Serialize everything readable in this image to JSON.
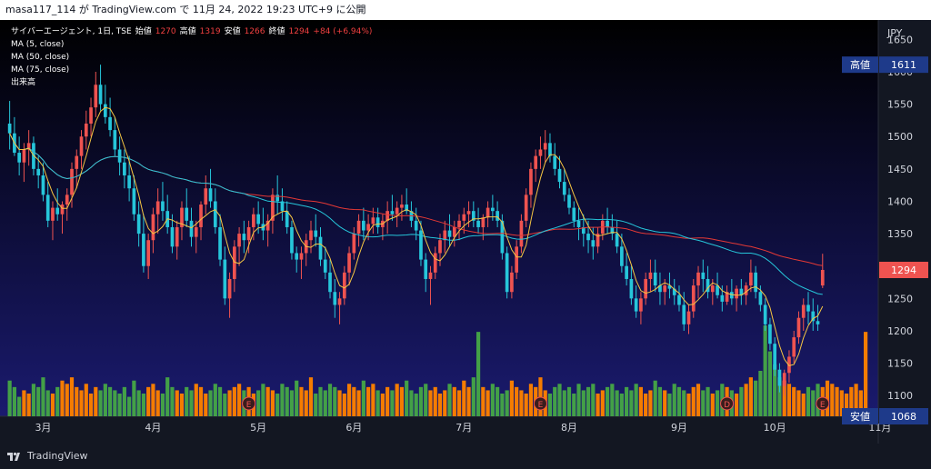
{
  "top_bar": {
    "text": "masa117_114 が TradingView.com で 11月 24, 2022 19:23 UTC+9 に公開"
  },
  "legend": {
    "symbol": "サイバーエージェント, 1日, TSE",
    "open_label": "始値",
    "open": "1270",
    "high_label": "高値",
    "high": "1319",
    "low_label": "安値",
    "low": "1266",
    "close_label": "終値",
    "close": "1294",
    "change": "+84 (+6.94%)",
    "indicators": [
      "MA (5, close)",
      "MA (50, close)",
      "MA (75, close)",
      "出来高"
    ]
  },
  "axis": {
    "currency": "JPY"
  },
  "markers": {
    "high": {
      "label": "高値",
      "value": "1611"
    },
    "last": {
      "value": "1294"
    },
    "low": {
      "label": "安値",
      "value": "1068"
    }
  },
  "event_labels": [
    "E",
    "E",
    "E",
    "D"
  ],
  "brand": "TradingView",
  "colors": {
    "up": "#ef5350",
    "down": "#26c6da",
    "ma5": "#f5c542",
    "ma50": "#26c6da",
    "ma75": "#e53935",
    "vol_up": "#f57c00",
    "vol_down": "#43a047"
  },
  "chart_data": {
    "type": "candlestick",
    "ylim": [
      1068,
      1680
    ],
    "y_ticks": [
      1100,
      1150,
      1200,
      1250,
      1300,
      1350,
      1400,
      1450,
      1500,
      1550,
      1600,
      1650
    ],
    "x_ticks": [
      "3月",
      "4月",
      "5月",
      "6月",
      "7月",
      "8月",
      "9月",
      "10月",
      "11月"
    ],
    "x_tick_index": [
      7,
      30,
      52,
      72,
      95,
      117,
      140,
      160,
      182
    ],
    "ohlc": [
      [
        1520,
        1555,
        1480,
        1505
      ],
      [
        1505,
        1530,
        1470,
        1475
      ],
      [
        1475,
        1500,
        1440,
        1460
      ],
      [
        1460,
        1490,
        1430,
        1480
      ],
      [
        1480,
        1510,
        1455,
        1490
      ],
      [
        1490,
        1500,
        1440,
        1450
      ],
      [
        1450,
        1470,
        1420,
        1440
      ],
      [
        1440,
        1460,
        1400,
        1410
      ],
      [
        1410,
        1430,
        1360,
        1370
      ],
      [
        1370,
        1400,
        1340,
        1390
      ],
      [
        1390,
        1420,
        1370,
        1380
      ],
      [
        1380,
        1400,
        1350,
        1395
      ],
      [
        1395,
        1420,
        1370,
        1410
      ],
      [
        1410,
        1460,
        1390,
        1450
      ],
      [
        1450,
        1480,
        1420,
        1470
      ],
      [
        1470,
        1510,
        1450,
        1500
      ],
      [
        1500,
        1540,
        1480,
        1520
      ],
      [
        1520,
        1560,
        1500,
        1545
      ],
      [
        1545,
        1600,
        1530,
        1580
      ],
      [
        1580,
        1611,
        1540,
        1550
      ],
      [
        1550,
        1580,
        1520,
        1530
      ],
      [
        1530,
        1560,
        1500,
        1510
      ],
      [
        1510,
        1530,
        1470,
        1480
      ],
      [
        1480,
        1500,
        1440,
        1460
      ],
      [
        1460,
        1480,
        1420,
        1440
      ],
      [
        1440,
        1470,
        1400,
        1420
      ],
      [
        1420,
        1440,
        1370,
        1380
      ],
      [
        1380,
        1400,
        1330,
        1350
      ],
      [
        1350,
        1380,
        1290,
        1300
      ],
      [
        1300,
        1350,
        1280,
        1340
      ],
      [
        1340,
        1390,
        1320,
        1380
      ],
      [
        1380,
        1420,
        1350,
        1400
      ],
      [
        1400,
        1430,
        1370,
        1385
      ],
      [
        1385,
        1410,
        1350,
        1360
      ],
      [
        1360,
        1380,
        1320,
        1330
      ],
      [
        1330,
        1370,
        1310,
        1360
      ],
      [
        1360,
        1400,
        1340,
        1390
      ],
      [
        1390,
        1420,
        1360,
        1370
      ],
      [
        1370,
        1390,
        1330,
        1345
      ],
      [
        1345,
        1370,
        1320,
        1360
      ],
      [
        1360,
        1400,
        1340,
        1395
      ],
      [
        1395,
        1440,
        1380,
        1420
      ],
      [
        1420,
        1450,
        1390,
        1400
      ],
      [
        1400,
        1420,
        1350,
        1360
      ],
      [
        1360,
        1380,
        1300,
        1310
      ],
      [
        1310,
        1330,
        1240,
        1250
      ],
      [
        1250,
        1290,
        1220,
        1280
      ],
      [
        1280,
        1340,
        1260,
        1330
      ],
      [
        1330,
        1360,
        1300,
        1350
      ],
      [
        1350,
        1370,
        1320,
        1340
      ],
      [
        1340,
        1370,
        1320,
        1360
      ],
      [
        1360,
        1390,
        1340,
        1380
      ],
      [
        1380,
        1400,
        1350,
        1365
      ],
      [
        1365,
        1390,
        1340,
        1355
      ],
      [
        1355,
        1380,
        1330,
        1370
      ],
      [
        1370,
        1420,
        1350,
        1410
      ],
      [
        1410,
        1440,
        1380,
        1400
      ],
      [
        1400,
        1420,
        1370,
        1385
      ],
      [
        1385,
        1400,
        1350,
        1360
      ],
      [
        1360,
        1370,
        1310,
        1320
      ],
      [
        1320,
        1330,
        1290,
        1310
      ],
      [
        1310,
        1330,
        1280,
        1320
      ],
      [
        1320,
        1350,
        1300,
        1340
      ],
      [
        1340,
        1370,
        1320,
        1355
      ],
      [
        1355,
        1380,
        1330,
        1345
      ],
      [
        1345,
        1360,
        1300,
        1310
      ],
      [
        1310,
        1330,
        1280,
        1290
      ],
      [
        1290,
        1310,
        1250,
        1260
      ],
      [
        1260,
        1280,
        1220,
        1240
      ],
      [
        1240,
        1260,
        1210,
        1250
      ],
      [
        1250,
        1300,
        1240,
        1290
      ],
      [
        1290,
        1330,
        1270,
        1320
      ],
      [
        1320,
        1360,
        1310,
        1350
      ],
      [
        1350,
        1380,
        1330,
        1370
      ],
      [
        1370,
        1390,
        1340,
        1355
      ],
      [
        1355,
        1380,
        1340,
        1365
      ],
      [
        1365,
        1390,
        1350,
        1375
      ],
      [
        1375,
        1390,
        1350,
        1360
      ],
      [
        1360,
        1380,
        1340,
        1370
      ],
      [
        1370,
        1400,
        1350,
        1385
      ],
      [
        1385,
        1410,
        1370,
        1380
      ],
      [
        1380,
        1400,
        1360,
        1390
      ],
      [
        1390,
        1410,
        1370,
        1395
      ],
      [
        1395,
        1420,
        1380,
        1385
      ],
      [
        1385,
        1400,
        1360,
        1370
      ],
      [
        1370,
        1390,
        1340,
        1355
      ],
      [
        1355,
        1370,
        1300,
        1310
      ],
      [
        1310,
        1320,
        1260,
        1280
      ],
      [
        1280,
        1300,
        1240,
        1290
      ],
      [
        1290,
        1330,
        1280,
        1320
      ],
      [
        1320,
        1350,
        1300,
        1340
      ],
      [
        1340,
        1370,
        1320,
        1355
      ],
      [
        1355,
        1380,
        1330,
        1345
      ],
      [
        1345,
        1370,
        1330,
        1360
      ],
      [
        1360,
        1380,
        1340,
        1370
      ],
      [
        1370,
        1390,
        1350,
        1380
      ],
      [
        1380,
        1400,
        1360,
        1385
      ],
      [
        1385,
        1400,
        1360,
        1370
      ],
      [
        1370,
        1390,
        1350,
        1360
      ],
      [
        1360,
        1380,
        1340,
        1375
      ],
      [
        1375,
        1400,
        1360,
        1390
      ],
      [
        1390,
        1410,
        1370,
        1385
      ],
      [
        1385,
        1400,
        1360,
        1370
      ],
      [
        1370,
        1380,
        1310,
        1320
      ],
      [
        1320,
        1330,
        1250,
        1260
      ],
      [
        1260,
        1300,
        1250,
        1290
      ],
      [
        1290,
        1340,
        1280,
        1330
      ],
      [
        1330,
        1380,
        1320,
        1370
      ],
      [
        1370,
        1420,
        1360,
        1410
      ],
      [
        1410,
        1460,
        1390,
        1450
      ],
      [
        1450,
        1480,
        1430,
        1470
      ],
      [
        1470,
        1500,
        1450,
        1480
      ],
      [
        1480,
        1510,
        1460,
        1490
      ],
      [
        1490,
        1505,
        1460,
        1470
      ],
      [
        1470,
        1490,
        1440,
        1450
      ],
      [
        1450,
        1470,
        1420,
        1430
      ],
      [
        1430,
        1450,
        1400,
        1410
      ],
      [
        1410,
        1420,
        1380,
        1390
      ],
      [
        1390,
        1400,
        1360,
        1370
      ],
      [
        1370,
        1390,
        1340,
        1360
      ],
      [
        1360,
        1380,
        1330,
        1350
      ],
      [
        1350,
        1370,
        1320,
        1340
      ],
      [
        1340,
        1360,
        1310,
        1330
      ],
      [
        1330,
        1360,
        1320,
        1350
      ],
      [
        1350,
        1380,
        1340,
        1370
      ],
      [
        1370,
        1390,
        1350,
        1360
      ],
      [
        1360,
        1380,
        1340,
        1350
      ],
      [
        1350,
        1370,
        1320,
        1330
      ],
      [
        1330,
        1350,
        1290,
        1300
      ],
      [
        1300,
        1320,
        1270,
        1280
      ],
      [
        1280,
        1300,
        1240,
        1250
      ],
      [
        1250,
        1270,
        1220,
        1230
      ],
      [
        1230,
        1260,
        1210,
        1250
      ],
      [
        1250,
        1290,
        1240,
        1280
      ],
      [
        1280,
        1310,
        1260,
        1290
      ],
      [
        1290,
        1310,
        1260,
        1270
      ],
      [
        1270,
        1290,
        1240,
        1260
      ],
      [
        1260,
        1280,
        1240,
        1270
      ],
      [
        1270,
        1290,
        1250,
        1265
      ],
      [
        1265,
        1280,
        1240,
        1255
      ],
      [
        1255,
        1270,
        1230,
        1240
      ],
      [
        1240,
        1260,
        1200,
        1210
      ],
      [
        1210,
        1240,
        1195,
        1230
      ],
      [
        1230,
        1280,
        1220,
        1270
      ],
      [
        1270,
        1300,
        1250,
        1290
      ],
      [
        1290,
        1310,
        1260,
        1280
      ],
      [
        1280,
        1300,
        1250,
        1260
      ],
      [
        1260,
        1280,
        1240,
        1270
      ],
      [
        1270,
        1290,
        1250,
        1255
      ],
      [
        1255,
        1270,
        1230,
        1245
      ],
      [
        1245,
        1270,
        1240,
        1260
      ],
      [
        1260,
        1280,
        1240,
        1250
      ],
      [
        1250,
        1270,
        1230,
        1265
      ],
      [
        1265,
        1280,
        1240,
        1255
      ],
      [
        1255,
        1275,
        1240,
        1270
      ],
      [
        1270,
        1310,
        1260,
        1290
      ],
      [
        1290,
        1300,
        1250,
        1260
      ],
      [
        1260,
        1270,
        1230,
        1240
      ],
      [
        1240,
        1250,
        1200,
        1210
      ],
      [
        1210,
        1220,
        1170,
        1180
      ],
      [
        1180,
        1190,
        1130,
        1140
      ],
      [
        1140,
        1150,
        1105,
        1115
      ],
      [
        1115,
        1140,
        1100,
        1135
      ],
      [
        1135,
        1170,
        1120,
        1160
      ],
      [
        1160,
        1200,
        1150,
        1190
      ],
      [
        1190,
        1230,
        1180,
        1220
      ],
      [
        1220,
        1250,
        1200,
        1240
      ],
      [
        1240,
        1260,
        1210,
        1230
      ],
      [
        1230,
        1250,
        1200,
        1215
      ],
      [
        1215,
        1240,
        1200,
        1210
      ],
      [
        1270,
        1319,
        1266,
        1294
      ]
    ],
    "volume": [
      55,
      45,
      30,
      40,
      35,
      50,
      45,
      60,
      40,
      35,
      45,
      55,
      50,
      60,
      45,
      40,
      50,
      35,
      45,
      40,
      50,
      45,
      40,
      35,
      45,
      30,
      55,
      40,
      35,
      45,
      50,
      40,
      35,
      60,
      45,
      40,
      35,
      45,
      40,
      50,
      45,
      35,
      40,
      50,
      45,
      35,
      40,
      45,
      50,
      40,
      45,
      35,
      40,
      50,
      45,
      40,
      35,
      50,
      45,
      40,
      55,
      45,
      40,
      60,
      35,
      45,
      40,
      50,
      45,
      40,
      35,
      50,
      45,
      40,
      55,
      45,
      50,
      40,
      35,
      45,
      40,
      50,
      45,
      55,
      40,
      35,
      45,
      50,
      40,
      45,
      35,
      40,
      50,
      45,
      40,
      55,
      45,
      60,
      130,
      45,
      40,
      50,
      45,
      35,
      40,
      55,
      45,
      40,
      35,
      50,
      45,
      60,
      40,
      35,
      45,
      50,
      40,
      45,
      35,
      50,
      40,
      45,
      50,
      35,
      40,
      45,
      50,
      40,
      35,
      45,
      40,
      50,
      45,
      35,
      40,
      55,
      45,
      40,
      35,
      50,
      45,
      40,
      35,
      45,
      50,
      40,
      45,
      35,
      40,
      50,
      45,
      40,
      35,
      45,
      50,
      60,
      55,
      70,
      140,
      100,
      80,
      60,
      55,
      50,
      45,
      40,
      35,
      45,
      40,
      50,
      45,
      55,
      50,
      45,
      40,
      35,
      45,
      50,
      40,
      130
    ],
    "x_count": 181
  }
}
